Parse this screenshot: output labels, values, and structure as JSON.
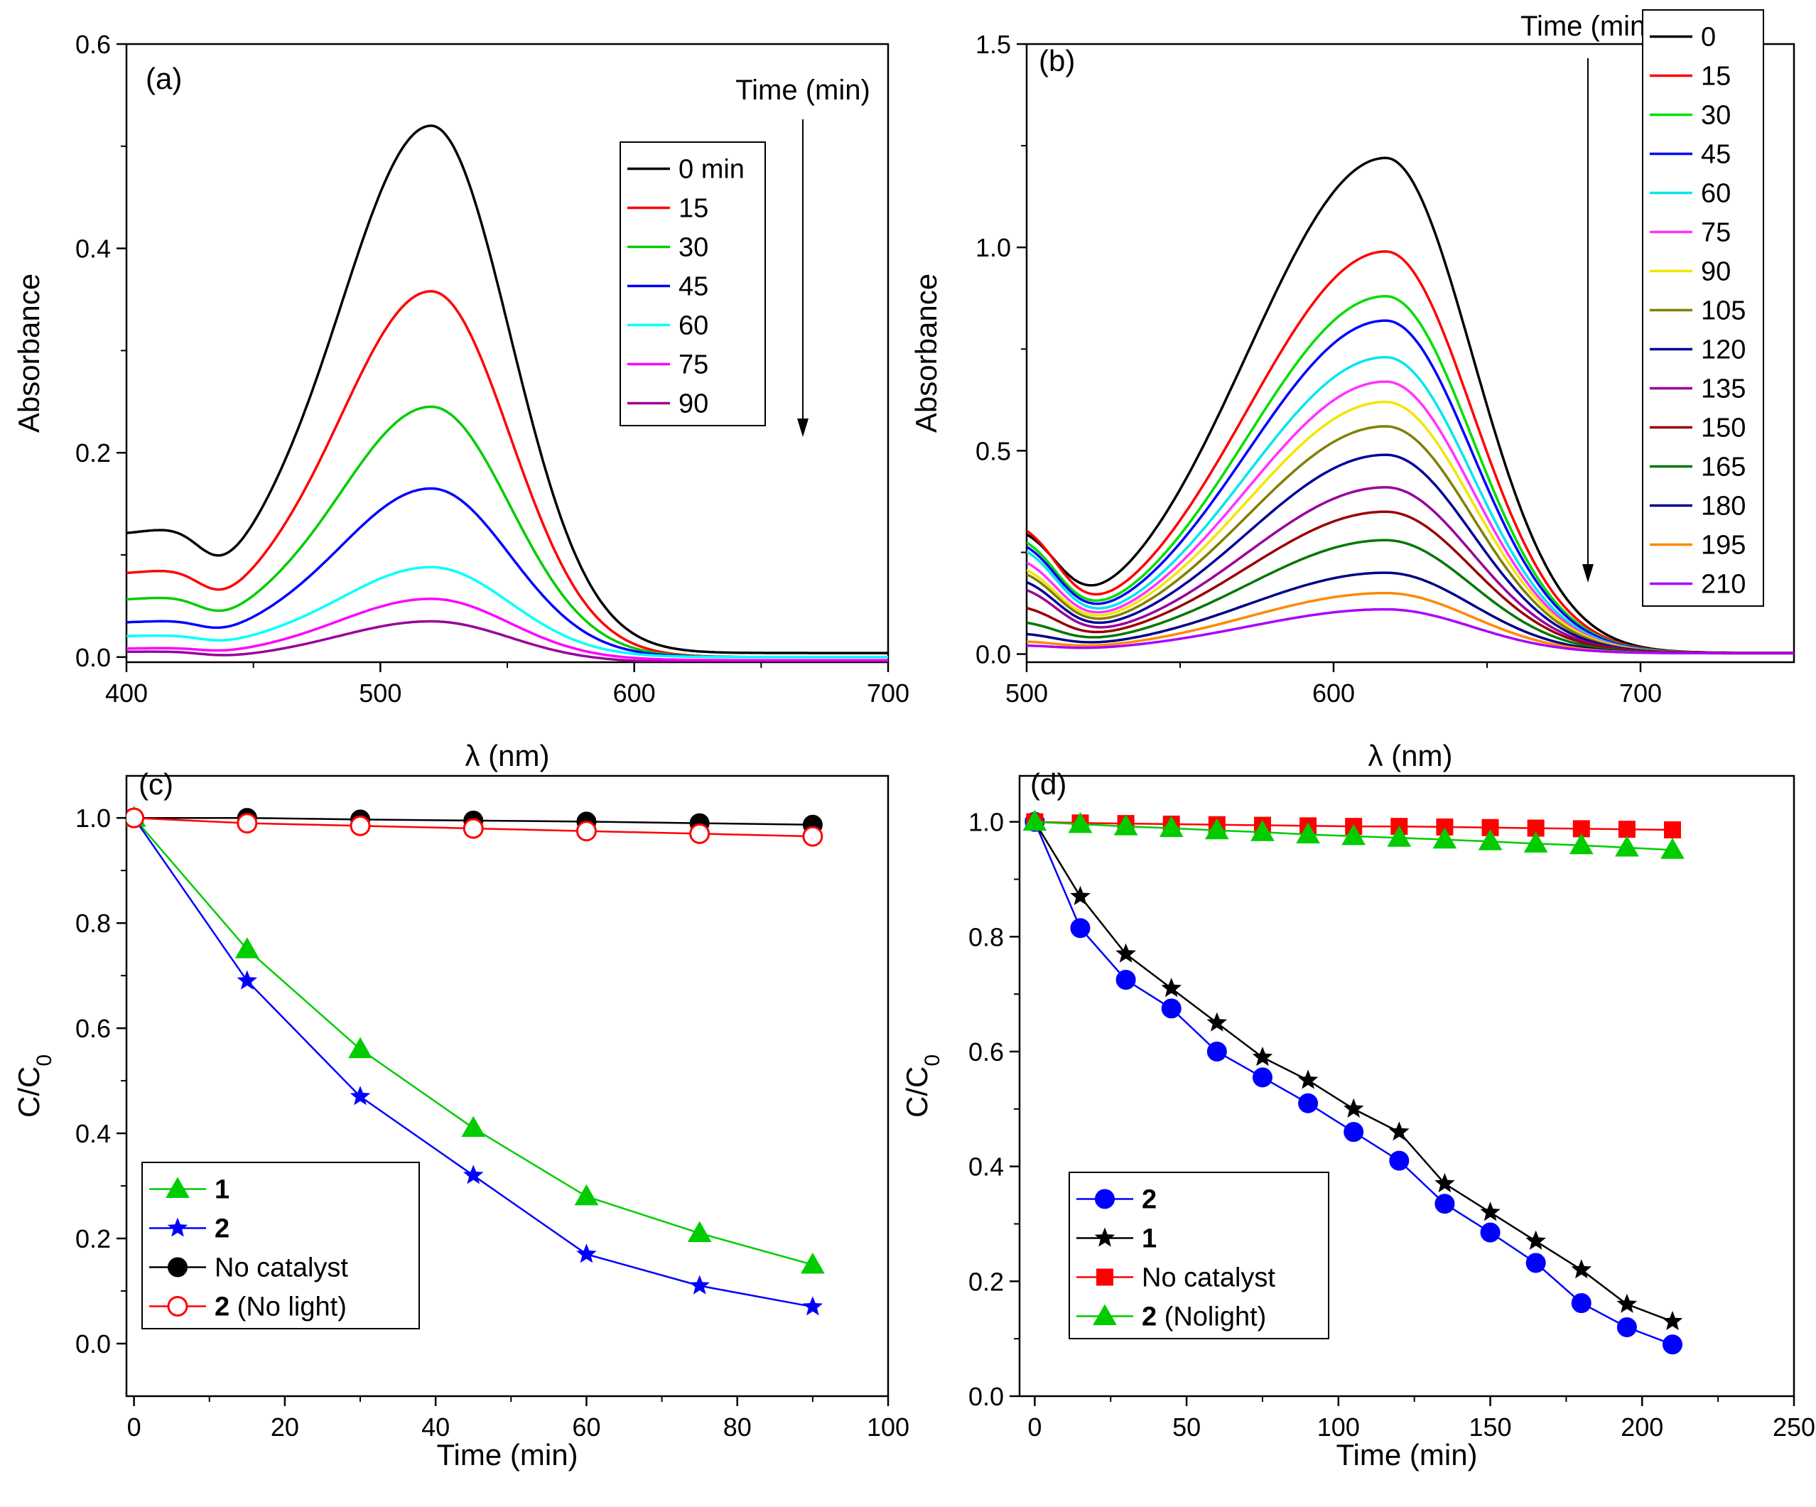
{
  "chart_data": [
    {
      "type": "line",
      "panel_label": "(a)",
      "xlabel": "λ (nm)",
      "ylabel": "Absorbance",
      "xlim": [
        400,
        700
      ],
      "ylim": [
        -0.005,
        0.6
      ],
      "xticks": [
        400,
        500,
        600,
        700
      ],
      "yticks": [
        0.0,
        0.2,
        0.4,
        0.6
      ],
      "xtick_labels": [
        "400",
        "500",
        "600",
        "700"
      ],
      "ytick_labels": [
        "0.0",
        "0.2",
        "0.4",
        "0.6"
      ],
      "annotation": "Time (min)",
      "legend_position": "top-right",
      "spectra": {
        "peak": 520,
        "sigma_left": 38,
        "sigma_right": 31,
        "edge": 430,
        "shoulder_center": 450,
        "shoulder_width": 20,
        "shoulder_fraction": 0.25
      },
      "series": [
        {
          "name": "0 min",
          "color": "#000000",
          "peak": 0.52,
          "base": 0.118,
          "tail": 0.004
        },
        {
          "name": "15",
          "color": "#ff0000",
          "peak": 0.358,
          "base": 0.08,
          "tail": 0.0
        },
        {
          "name": "30",
          "color": "#00cc00",
          "peak": 0.245,
          "base": 0.055,
          "tail": 0.0
        },
        {
          "name": "45",
          "color": "#0000ff",
          "peak": 0.165,
          "base": 0.033,
          "tail": 0.0
        },
        {
          "name": "60",
          "color": "#00ffff",
          "peak": 0.088,
          "base": 0.02,
          "tail": 0.0
        },
        {
          "name": "75",
          "color": "#ff00ff",
          "peak": 0.057,
          "base": 0.008,
          "tail": -0.003
        },
        {
          "name": "90",
          "color": "#990099",
          "peak": 0.035,
          "base": 0.005,
          "tail": -0.005
        }
      ]
    },
    {
      "type": "line",
      "panel_label": "(b)",
      "xlabel": "λ (nm)",
      "ylabel": "Absorbance",
      "xlim": [
        500,
        750
      ],
      "ylim": [
        -0.02,
        1.5
      ],
      "xticks": [
        500,
        600,
        700
      ],
      "yticks": [
        0.0,
        0.5,
        1.0,
        1.5
      ],
      "xtick_labels": [
        "500",
        "600",
        "700"
      ],
      "ytick_labels": [
        "0.0",
        "0.5",
        "1.0",
        "1.5"
      ],
      "annotation": "Time (min)",
      "legend_position": "top-right",
      "spectra": {
        "peak": 617,
        "sigma_left": 45,
        "sigma_right": 28,
        "edge": 510,
        "shoulder_center": 0,
        "shoulder_width": 1,
        "shoulder_fraction": 0
      },
      "series": [
        {
          "name": "0",
          "color": "#000000",
          "peak": 1.22,
          "base": 0.3,
          "tail": 0.003
        },
        {
          "name": "15",
          "color": "#ff0000",
          "peak": 0.99,
          "base": 0.32,
          "tail": 0.003
        },
        {
          "name": "30",
          "color": "#00dd00",
          "peak": 0.88,
          "base": 0.29,
          "tail": 0.003
        },
        {
          "name": "45",
          "color": "#0000ff",
          "peak": 0.82,
          "base": 0.28,
          "tail": 0.003
        },
        {
          "name": "60",
          "color": "#00e5ee",
          "peak": 0.73,
          "base": 0.27,
          "tail": 0.003
        },
        {
          "name": "75",
          "color": "#ff33ff",
          "peak": 0.67,
          "base": 0.24,
          "tail": 0.003
        },
        {
          "name": "90",
          "color": "#f2e600",
          "peak": 0.62,
          "base": 0.22,
          "tail": 0.003
        },
        {
          "name": "105",
          "color": "#808000",
          "peak": 0.56,
          "base": 0.21,
          "tail": 0.003
        },
        {
          "name": "120",
          "color": "#000099",
          "peak": 0.49,
          "base": 0.19,
          "tail": 0.003
        },
        {
          "name": "135",
          "color": "#990099",
          "peak": 0.41,
          "base": 0.17,
          "tail": 0.003
        },
        {
          "name": "150",
          "color": "#990000",
          "peak": 0.35,
          "base": 0.12,
          "tail": 0.003
        },
        {
          "name": "165",
          "color": "#007700",
          "peak": 0.28,
          "base": 0.08,
          "tail": 0.002
        },
        {
          "name": "180",
          "color": "#000088",
          "peak": 0.2,
          "base": 0.05,
          "tail": 0.002
        },
        {
          "name": "195",
          "color": "#ff8800",
          "peak": 0.15,
          "base": 0.03,
          "tail": 0.002
        },
        {
          "name": "210",
          "color": "#aa00ff",
          "peak": 0.11,
          "base": 0.02,
          "tail": 0.002
        }
      ]
    },
    {
      "type": "line",
      "panel_label": "(c)",
      "xlabel": "Time (min)",
      "ylabel": "C/C0",
      "ylabel_main": "C/C",
      "ylabel_sub": "0",
      "xlim": [
        -1,
        100
      ],
      "ylim": [
        -0.1,
        1.08
      ],
      "xticks": [
        0,
        20,
        40,
        60,
        80,
        100
      ],
      "yticks": [
        0.0,
        0.2,
        0.4,
        0.6,
        0.8,
        1.0
      ],
      "xtick_labels": [
        "0",
        "20",
        "40",
        "60",
        "80",
        "100"
      ],
      "ytick_labels": [
        "0.0",
        "0.2",
        "0.4",
        "0.6",
        "0.8",
        "1.0"
      ],
      "legend_position": "bottom-left",
      "x": [
        0,
        15,
        30,
        45,
        60,
        75,
        90
      ],
      "series": [
        {
          "name": "1",
          "bold": "1",
          "rest": "",
          "color": "#00cc00",
          "marker": "triangle",
          "values": [
            1.0,
            0.75,
            0.56,
            0.41,
            0.28,
            0.21,
            0.15
          ]
        },
        {
          "name": "2",
          "bold": "2",
          "rest": "",
          "color": "#0000ff",
          "marker": "star",
          "values": [
            1.0,
            0.69,
            0.47,
            0.32,
            0.17,
            0.11,
            0.07
          ]
        },
        {
          "name": "No catalyst",
          "bold": "",
          "rest": "No catalyst",
          "color": "#000000",
          "marker": "circle",
          "values": [
            1.0,
            1.0,
            0.997,
            0.995,
            0.993,
            0.99,
            0.987
          ]
        },
        {
          "name": "2 (No light)",
          "bold": "2",
          "rest": " (No light)",
          "color": "#ff0000",
          "marker": "open-circle",
          "values": [
            1.0,
            0.99,
            0.985,
            0.98,
            0.975,
            0.97,
            0.965
          ]
        }
      ]
    },
    {
      "type": "line",
      "panel_label": "(d)",
      "xlabel": "Time (min)",
      "ylabel": "C/C0",
      "ylabel_main": "C/C",
      "ylabel_sub": "0",
      "xlim": [
        -5,
        250
      ],
      "ylim": [
        0.0,
        1.08
      ],
      "xticks": [
        0,
        50,
        100,
        150,
        200,
        250
      ],
      "yticks": [
        0.0,
        0.2,
        0.4,
        0.6,
        0.8,
        1.0
      ],
      "xtick_labels": [
        "0",
        "50",
        "100",
        "150",
        "200",
        "250"
      ],
      "ytick_labels": [
        "0.0",
        "0.2",
        "0.4",
        "0.6",
        "0.8",
        "1.0"
      ],
      "legend_position": "bottom-left",
      "x": [
        0,
        15,
        30,
        45,
        60,
        75,
        90,
        105,
        120,
        135,
        150,
        165,
        180,
        195,
        210
      ],
      "series": [
        {
          "name": "2",
          "bold": "2",
          "rest": "",
          "color": "#0000ff",
          "marker": "circle",
          "values": [
            1.0,
            0.815,
            0.725,
            0.675,
            0.6,
            0.555,
            0.51,
            0.46,
            0.41,
            0.335,
            0.285,
            0.232,
            0.162,
            0.12,
            0.09
          ]
        },
        {
          "name": "1",
          "bold": "1",
          "rest": "",
          "color": "#000000",
          "marker": "star",
          "values": [
            1.0,
            0.87,
            0.77,
            0.71,
            0.65,
            0.59,
            0.55,
            0.5,
            0.46,
            0.37,
            0.32,
            0.27,
            0.22,
            0.16,
            0.13
          ]
        },
        {
          "name": "No catalyst",
          "bold": "",
          "rest": "No catalyst",
          "color": "#ff0000",
          "marker": "square",
          "values": [
            1.0,
            0.998,
            0.997,
            0.996,
            0.995,
            0.994,
            0.993,
            0.992,
            0.992,
            0.991,
            0.99,
            0.989,
            0.988,
            0.987,
            0.986
          ]
        },
        {
          "name": "2 (Nolight)",
          "bold": "2",
          "rest": " (Nolight)",
          "color": "#00cc00",
          "marker": "triangle",
          "values": [
            1.0,
            0.996,
            0.992,
            0.989,
            0.985,
            0.982,
            0.978,
            0.975,
            0.972,
            0.969,
            0.966,
            0.962,
            0.959,
            0.955,
            0.951
          ]
        }
      ]
    }
  ]
}
